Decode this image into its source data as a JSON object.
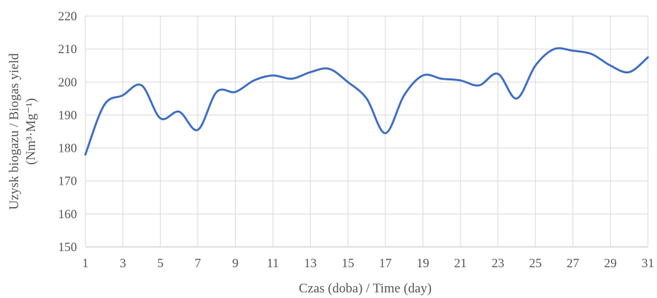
{
  "chart_data": {
    "type": "line",
    "xlabel": "Czas (doba) / Time (day)",
    "ylabel_line1": "Uzysk biogazu / Biogas yield",
    "ylabel_line2": "(Nm³·Mg⁻¹)",
    "xlim": [
      1,
      31
    ],
    "ylim": [
      150,
      220
    ],
    "x_ticks": [
      1,
      3,
      5,
      7,
      9,
      11,
      13,
      15,
      17,
      19,
      21,
      23,
      25,
      27,
      29,
      31
    ],
    "y_ticks": [
      150,
      160,
      170,
      180,
      190,
      200,
      210,
      220
    ],
    "grid": true,
    "line_color": "#4472c4",
    "series": [
      {
        "x": [
          1,
          2,
          3,
          4,
          5,
          6,
          7,
          8,
          9,
          10,
          11,
          12,
          13,
          14,
          15,
          16,
          17,
          18,
          19,
          20,
          21,
          22,
          23,
          24,
          25,
          26,
          27,
          28,
          29,
          30,
          31
        ],
        "values": [
          178,
          193,
          196,
          199,
          189,
          191,
          185.5,
          197,
          197,
          200.5,
          202,
          201,
          203,
          204,
          200,
          195,
          184.5,
          196,
          202,
          201,
          200.5,
          199,
          202.5,
          195,
          205,
          210,
          209.5,
          208.5,
          205,
          203,
          207.5
        ]
      }
    ]
  }
}
